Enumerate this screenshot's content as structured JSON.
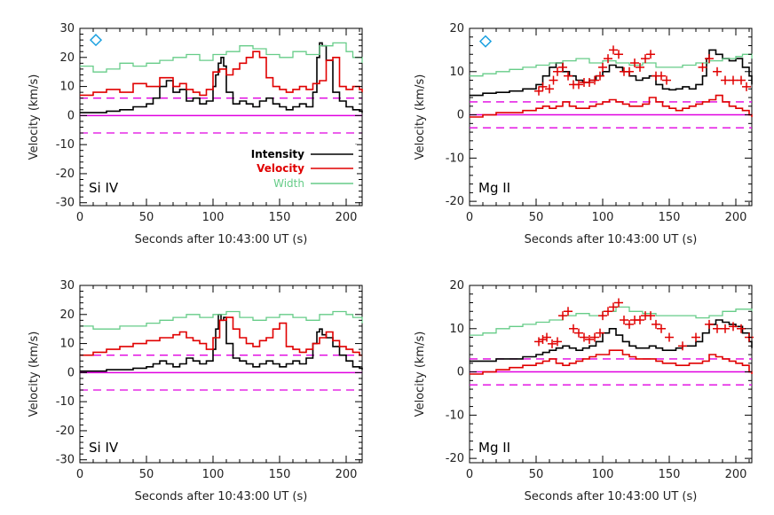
{
  "figure": {
    "x_label": "Seconds after 10:43:00 UT (s)",
    "y_label": "Velocity (km/s)"
  },
  "legend": {
    "entries": [
      {
        "label": "Intensity",
        "color": "#000000"
      },
      {
        "label": "Velocity",
        "color": "#e00000"
      },
      {
        "label": "Width",
        "color": "#66cc88"
      }
    ]
  },
  "colors": {
    "intensity": "#000000",
    "velocity": "#e00000",
    "width": "#66cc88",
    "reference": "#e000e0",
    "marker": "#1aa0e0",
    "cross": "#e00000"
  },
  "chart_data": [
    {
      "type": "line",
      "panel_label": "Si IV",
      "xlim": [
        0,
        212
      ],
      "ylim": [
        -31,
        30
      ],
      "x_ticks": [
        0,
        50,
        100,
        150,
        200
      ],
      "y_ticks": [
        -30,
        -20,
        -10,
        0,
        10,
        20,
        30
      ],
      "reference_lines": {
        "solid": 0,
        "dashed": [
          6,
          -6
        ]
      },
      "diamond_marker": {
        "x": 12,
        "y": 26
      },
      "series": [
        {
          "key": "intensity",
          "name": "Intensity",
          "x": [
            0,
            10,
            20,
            30,
            40,
            50,
            55,
            60,
            65,
            70,
            75,
            80,
            85,
            90,
            95,
            100,
            102,
            104,
            106,
            108,
            110,
            115,
            120,
            125,
            130,
            135,
            140,
            145,
            150,
            155,
            160,
            165,
            170,
            175,
            178,
            180,
            182,
            185,
            190,
            195,
            200,
            205,
            210,
            212
          ],
          "y": [
            1,
            1,
            1.5,
            2,
            3,
            4,
            6,
            10,
            12,
            8,
            9,
            5,
            6,
            4,
            5,
            10,
            14,
            18,
            20,
            17,
            8,
            4,
            5,
            4,
            3,
            5,
            6,
            4,
            3,
            2,
            3,
            4,
            3,
            8,
            20,
            25,
            24,
            19,
            8,
            5,
            3,
            2,
            1.5,
            1
          ]
        },
        {
          "key": "velocity",
          "name": "Velocity",
          "x": [
            0,
            10,
            20,
            30,
            40,
            50,
            60,
            70,
            75,
            80,
            85,
            90,
            95,
            100,
            105,
            110,
            115,
            120,
            125,
            130,
            135,
            140,
            145,
            150,
            155,
            160,
            165,
            170,
            175,
            180,
            185,
            190,
            195,
            200,
            205,
            210,
            212
          ],
          "y": [
            7,
            8,
            9,
            8,
            11,
            10,
            13,
            10,
            11,
            9,
            8,
            7,
            9,
            15,
            16,
            14,
            16,
            18,
            20,
            22,
            20,
            13,
            10,
            9,
            8,
            9,
            10,
            9,
            11,
            12,
            19,
            20,
            10,
            9,
            10,
            9,
            8
          ]
        },
        {
          "key": "width",
          "name": "Width",
          "x": [
            0,
            10,
            20,
            30,
            40,
            50,
            60,
            70,
            80,
            90,
            100,
            110,
            120,
            130,
            140,
            150,
            160,
            170,
            180,
            190,
            200,
            205,
            212
          ],
          "y": [
            17,
            15,
            16,
            18,
            17,
            18,
            19,
            20,
            21,
            19,
            21,
            22,
            24,
            23,
            21,
            20,
            22,
            21,
            24,
            25,
            22,
            20,
            18
          ]
        }
      ]
    },
    {
      "type": "line",
      "panel_label": "Mg II",
      "xlim": [
        0,
        212
      ],
      "ylim": [
        -21,
        20
      ],
      "x_ticks": [
        0,
        50,
        100,
        150,
        200
      ],
      "y_ticks": [
        -20,
        -10,
        0,
        10,
        20
      ],
      "reference_lines": {
        "solid": 0,
        "dashed": [
          3,
          -3
        ]
      },
      "diamond_marker": {
        "x": 12,
        "y": 17
      },
      "series": [
        {
          "key": "intensity",
          "name": "Intensity",
          "x": [
            0,
            10,
            20,
            30,
            40,
            50,
            55,
            60,
            65,
            70,
            75,
            80,
            85,
            90,
            95,
            100,
            105,
            110,
            115,
            120,
            125,
            130,
            135,
            140,
            145,
            150,
            155,
            160,
            165,
            170,
            175,
            178,
            180,
            185,
            190,
            195,
            200,
            205,
            210,
            212
          ],
          "y": [
            4.5,
            5,
            5.2,
            5.5,
            6,
            7,
            9,
            11,
            12,
            10,
            9,
            8,
            7.5,
            8,
            9,
            10,
            11.5,
            11,
            10,
            9,
            8,
            8.5,
            9,
            7,
            6,
            5.8,
            6,
            6.5,
            6,
            7,
            9,
            13,
            15,
            14,
            13,
            12.5,
            13,
            11,
            9,
            7
          ]
        },
        {
          "key": "velocity",
          "name": "Velocity",
          "x": [
            0,
            10,
            20,
            30,
            40,
            50,
            55,
            60,
            65,
            70,
            75,
            80,
            85,
            90,
            95,
            100,
            105,
            110,
            115,
            120,
            125,
            130,
            135,
            140,
            145,
            150,
            155,
            160,
            165,
            170,
            175,
            180,
            185,
            190,
            195,
            200,
            205,
            210,
            212
          ],
          "y": [
            -0.5,
            0,
            0.5,
            0.5,
            1,
            1.5,
            2,
            1.5,
            2,
            3,
            2,
            1.5,
            1.5,
            2,
            2.5,
            3,
            3.5,
            3,
            2.5,
            2,
            2,
            2.5,
            4,
            3,
            2,
            1.5,
            1,
            1.5,
            2,
            2.5,
            3,
            3.5,
            4.5,
            3,
            2,
            1.5,
            1,
            0,
            -0.5
          ]
        },
        {
          "key": "width",
          "name": "Width",
          "x": [
            0,
            10,
            20,
            30,
            40,
            50,
            60,
            70,
            80,
            90,
            100,
            110,
            120,
            130,
            140,
            150,
            160,
            170,
            180,
            190,
            200,
            205,
            212
          ],
          "y": [
            9,
            9.5,
            10,
            10.5,
            11,
            11.5,
            12,
            12.5,
            13,
            12,
            12.5,
            12,
            11.5,
            12,
            11,
            11,
            11.5,
            12,
            12.5,
            13,
            13.5,
            14,
            13
          ]
        }
      ],
      "crosses": {
        "x": [
          52,
          55,
          60,
          63,
          66,
          70,
          74,
          78,
          82,
          86,
          90,
          94,
          98,
          100,
          104,
          108,
          112,
          116,
          120,
          124,
          128,
          132,
          136,
          140,
          144,
          148,
          175,
          180,
          186,
          192,
          198,
          204,
          208
        ],
        "y": [
          5.5,
          6.5,
          6,
          8,
          10,
          11,
          9,
          7,
          7,
          7.5,
          7.5,
          8,
          9,
          11,
          13,
          15,
          14,
          10,
          10,
          12,
          11,
          13,
          14,
          9,
          9,
          8,
          11,
          13,
          10,
          8,
          8,
          8,
          6.5
        ]
      }
    },
    {
      "type": "line",
      "panel_label": "Si IV",
      "xlim": [
        0,
        212
      ],
      "ylim": [
        -31,
        30
      ],
      "x_ticks": [
        0,
        50,
        100,
        150,
        200
      ],
      "y_ticks": [
        -30,
        -20,
        -10,
        0,
        10,
        20,
        30
      ],
      "reference_lines": {
        "solid": 0,
        "dashed": [
          6,
          -6
        ]
      },
      "series": [
        {
          "key": "intensity",
          "name": "Intensity",
          "x": [
            0,
            10,
            20,
            30,
            40,
            50,
            55,
            60,
            65,
            70,
            75,
            80,
            85,
            90,
            95,
            100,
            102,
            104,
            106,
            108,
            110,
            115,
            120,
            125,
            130,
            135,
            140,
            145,
            150,
            155,
            160,
            165,
            170,
            175,
            178,
            180,
            182,
            185,
            190,
            195,
            200,
            205,
            210,
            212
          ],
          "y": [
            0.5,
            0.5,
            1,
            1,
            1.5,
            2,
            3,
            4,
            3,
            2,
            3,
            5,
            4,
            3,
            4,
            8,
            15,
            20,
            18,
            19,
            10,
            5,
            4,
            3,
            2,
            3,
            4,
            3,
            2,
            3,
            4,
            3,
            5,
            10,
            14,
            15,
            13,
            12,
            9,
            6,
            4,
            2,
            1.5,
            1
          ]
        },
        {
          "key": "velocity",
          "name": "Velocity",
          "x": [
            0,
            10,
            20,
            30,
            40,
            50,
            60,
            70,
            75,
            80,
            85,
            90,
            95,
            100,
            105,
            110,
            115,
            120,
            125,
            130,
            135,
            140,
            145,
            150,
            155,
            160,
            165,
            170,
            175,
            180,
            185,
            190,
            195,
            200,
            205,
            210,
            212
          ],
          "y": [
            6,
            7,
            8,
            9,
            10,
            11,
            12,
            13,
            14,
            12,
            11,
            10,
            8,
            12,
            18,
            19,
            15,
            12,
            10,
            9,
            11,
            12,
            15,
            17,
            9,
            8,
            7,
            8,
            10,
            12,
            14,
            11,
            9,
            8,
            7,
            6,
            6
          ]
        },
        {
          "key": "width",
          "name": "Width",
          "x": [
            0,
            10,
            20,
            30,
            40,
            50,
            60,
            70,
            80,
            90,
            100,
            110,
            120,
            130,
            140,
            150,
            160,
            170,
            180,
            190,
            200,
            205,
            212
          ],
          "y": [
            16,
            15,
            15,
            16,
            16,
            17,
            18,
            19,
            20,
            19,
            20,
            21,
            19,
            18,
            19,
            20,
            19,
            18,
            20,
            21,
            20,
            19,
            17
          ]
        }
      ]
    },
    {
      "type": "line",
      "panel_label": "Mg II",
      "xlim": [
        0,
        212
      ],
      "ylim": [
        -21,
        20
      ],
      "x_ticks": [
        0,
        50,
        100,
        150,
        200
      ],
      "y_ticks": [
        -20,
        -10,
        0,
        10,
        20
      ],
      "reference_lines": {
        "solid": 0,
        "dashed": [
          3,
          -3
        ]
      },
      "series": [
        {
          "key": "intensity",
          "name": "Intensity",
          "x": [
            0,
            10,
            20,
            30,
            40,
            50,
            55,
            60,
            65,
            70,
            75,
            80,
            85,
            90,
            95,
            100,
            105,
            110,
            115,
            120,
            125,
            130,
            135,
            140,
            145,
            150,
            155,
            160,
            165,
            170,
            175,
            180,
            185,
            190,
            195,
            200,
            205,
            210,
            212
          ],
          "y": [
            2.5,
            2.5,
            3,
            3,
            3.5,
            4,
            4.5,
            5,
            5.5,
            6,
            5.5,
            5,
            5.5,
            6,
            7,
            9,
            10,
            8.5,
            7,
            6,
            5.5,
            5.5,
            6,
            5.5,
            5,
            5,
            5.5,
            6,
            6,
            7,
            9,
            11,
            12,
            11.5,
            11,
            10.5,
            9,
            7,
            5.5
          ]
        },
        {
          "key": "velocity",
          "name": "Velocity",
          "x": [
            0,
            10,
            20,
            30,
            40,
            50,
            55,
            60,
            65,
            70,
            75,
            80,
            85,
            90,
            95,
            100,
            105,
            110,
            115,
            120,
            125,
            130,
            135,
            140,
            145,
            150,
            155,
            160,
            165,
            170,
            175,
            180,
            185,
            190,
            195,
            200,
            205,
            210,
            212
          ],
          "y": [
            -0.5,
            0,
            0.5,
            1,
            1.5,
            2,
            2.5,
            3,
            2,
            1.5,
            2,
            2.5,
            3,
            3.5,
            4,
            4,
            5,
            5,
            4,
            3.5,
            3,
            3,
            3,
            2.5,
            2,
            2,
            1.5,
            1.5,
            2,
            2,
            2.5,
            4,
            3.5,
            3,
            2.5,
            2,
            1.5,
            0,
            -0.5
          ]
        },
        {
          "key": "width",
          "name": "Width",
          "x": [
            0,
            10,
            20,
            30,
            40,
            50,
            60,
            70,
            80,
            90,
            100,
            110,
            120,
            130,
            140,
            150,
            160,
            170,
            180,
            190,
            200,
            205,
            212
          ],
          "y": [
            8.5,
            9,
            10,
            10.5,
            11,
            11.5,
            12,
            13,
            13.5,
            13,
            14,
            15,
            14,
            13.5,
            13,
            13,
            13,
            12.5,
            13,
            14,
            14.5,
            14.5,
            14
          ]
        }
      ],
      "crosses": {
        "x": [
          52,
          55,
          58,
          62,
          66,
          70,
          74,
          78,
          82,
          86,
          90,
          94,
          98,
          100,
          104,
          108,
          112,
          116,
          120,
          124,
          128,
          132,
          136,
          140,
          144,
          150,
          160,
          170,
          180,
          186,
          192,
          198,
          204,
          210
        ],
        "y": [
          7,
          7.5,
          8,
          6.5,
          7,
          13,
          14,
          10,
          9,
          8,
          7.5,
          8,
          9,
          13,
          14,
          15,
          16,
          12,
          11,
          12,
          12,
          13,
          13,
          11,
          10,
          8,
          6,
          8,
          11,
          10,
          10,
          10.5,
          10,
          8
        ]
      }
    }
  ]
}
